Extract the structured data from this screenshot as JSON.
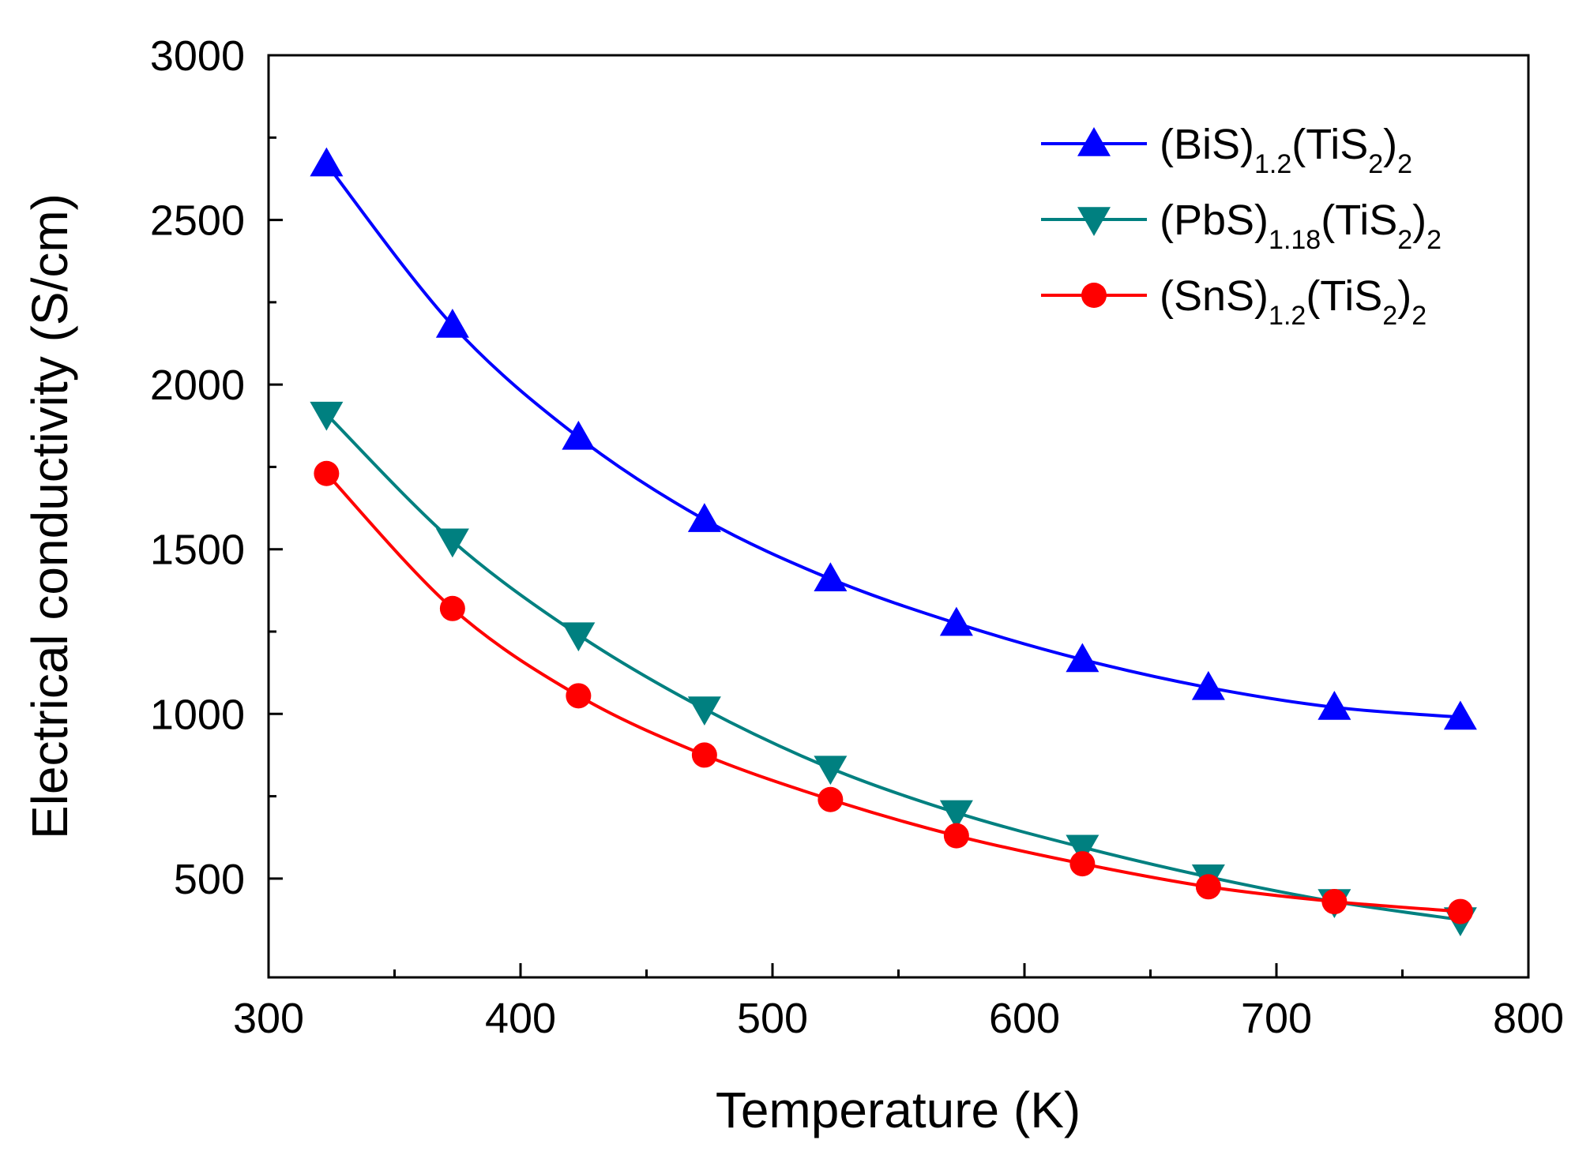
{
  "chart_data": {
    "type": "line",
    "title": "",
    "xlabel": "Temperature (K)",
    "ylabel": "Electrical conductivity (S/cm)",
    "xlim": [
      300,
      800
    ],
    "ylim": [
      200,
      3000
    ],
    "xticks": [
      300,
      400,
      500,
      600,
      700,
      800
    ],
    "xticks_minor": [
      350,
      450,
      550,
      650,
      750
    ],
    "yticks": [
      500,
      1000,
      1500,
      2000,
      2500,
      3000
    ],
    "yticks_minor": [
      750,
      1250,
      1750,
      2250,
      2750
    ],
    "xtick_labels": [
      "300",
      "400",
      "500",
      "600",
      "700",
      "800"
    ],
    "ytick_labels": [
      "500",
      "1000",
      "1500",
      "2000",
      "2500",
      "3000"
    ],
    "grid": false,
    "legend_position": "top-right",
    "x": [
      323,
      373,
      423,
      473,
      523,
      573,
      623,
      673,
      723,
      773
    ],
    "series": [
      {
        "name": "(BiS)1.2(TiS2)2",
        "legend_parts": [
          "(BiS)",
          "1.2",
          "(TiS",
          "2",
          ")",
          "2"
        ],
        "color": "#0000ff",
        "marker": "triangle-up",
        "values": [
          2670,
          2180,
          1840,
          1590,
          1410,
          1275,
          1165,
          1080,
          1020,
          990
        ]
      },
      {
        "name": "(PbS)1.18(TiS2)2",
        "legend_parts": [
          "(PbS)",
          "1.18",
          "(TiS",
          "2",
          ")",
          "2"
        ],
        "color": "#008080",
        "marker": "triangle-down",
        "values": [
          1910,
          1525,
          1240,
          1015,
          835,
          700,
          595,
          505,
          430,
          375
        ]
      },
      {
        "name": "(SnS)1.2(TiS2)2",
        "legend_parts": [
          "(SnS)",
          "1.2",
          "(TiS",
          "2",
          ")",
          "2"
        ],
        "color": "#ff0000",
        "marker": "circle",
        "values": [
          1730,
          1320,
          1055,
          875,
          740,
          630,
          545,
          475,
          430,
          400
        ]
      }
    ]
  }
}
